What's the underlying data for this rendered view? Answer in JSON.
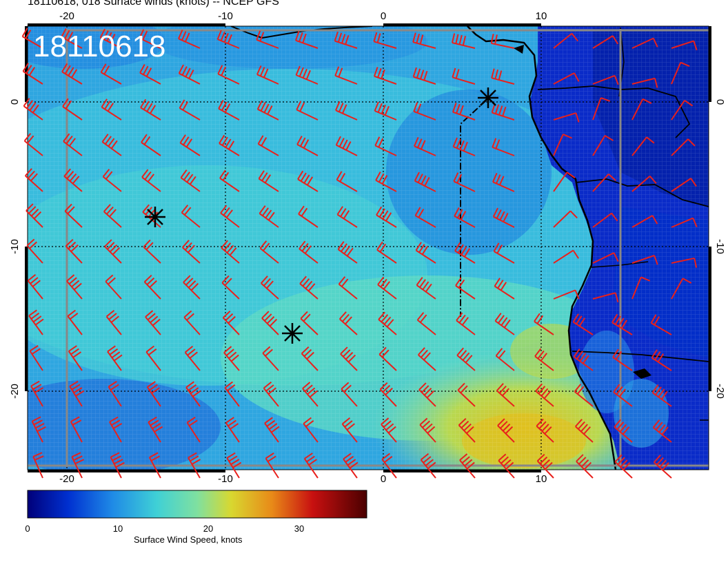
{
  "title": "18110618, 018 Surface winds (knots) -- NCEP GFS",
  "stamp": "18110618",
  "axes": {
    "x_ticks": [
      "-20",
      "-10",
      "0",
      "10"
    ],
    "y_ticks": [
      "0",
      "-10",
      "-20"
    ]
  },
  "colorbar": {
    "label": "Surface Wind Speed, knots",
    "ticks": [
      "0",
      "10",
      "20",
      "30"
    ],
    "colors": [
      "#00007a",
      "#0022cc",
      "#1f6fe6",
      "#3aa8ea",
      "#3fd0d6",
      "#7fe0b0",
      "#cfd73a",
      "#e8a018",
      "#d84010",
      "#a00000",
      "#500000"
    ]
  },
  "markers": [
    {
      "name": "storm-marker-north"
    },
    {
      "name": "storm-marker-west"
    },
    {
      "name": "storm-marker-south"
    }
  ]
}
